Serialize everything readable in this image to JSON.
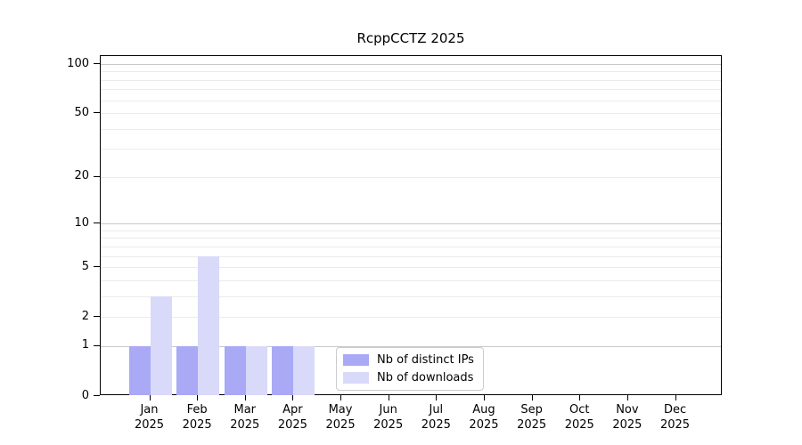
{
  "chart_data": {
    "type": "bar",
    "title": "RcppCCTZ 2025",
    "categories": [
      "Jan",
      "Feb",
      "Mar",
      "Apr",
      "May",
      "Jun",
      "Jul",
      "Aug",
      "Sep",
      "Oct",
      "Nov",
      "Dec"
    ],
    "year": "2025",
    "series": [
      {
        "name": "Nb of distinct IPs",
        "color": "#a9a9f6",
        "values": [
          1,
          1,
          1,
          1,
          0,
          0,
          0,
          0,
          0,
          0,
          0,
          0
        ]
      },
      {
        "name": "Nb of downloads",
        "color": "#d9d9fa",
        "values": [
          3,
          6,
          1,
          1,
          0,
          0,
          0,
          0,
          0,
          0,
          0,
          0
        ]
      }
    ],
    "yscale": "log1p",
    "ylim": [
      0,
      112
    ],
    "ytick_values": [
      0,
      1,
      2,
      5,
      10,
      20,
      50,
      100
    ],
    "ytick_labels": [
      "0",
      "1",
      "2",
      "5",
      "10",
      "20",
      "50",
      "100"
    ],
    "grid": true,
    "grid_minor_values": [
      2,
      3,
      4,
      5,
      6,
      7,
      8,
      9,
      20,
      30,
      40,
      50,
      60,
      70,
      80,
      90
    ],
    "grid_major_values": [
      1,
      10,
      100
    ],
    "legend_position": "lower-center"
  },
  "colors": {
    "grid_minor": "#ebebeb",
    "grid_major": "#c8c8c8",
    "axis": "#000000",
    "legend_border": "#cccccc",
    "background": "#ffffff"
  }
}
